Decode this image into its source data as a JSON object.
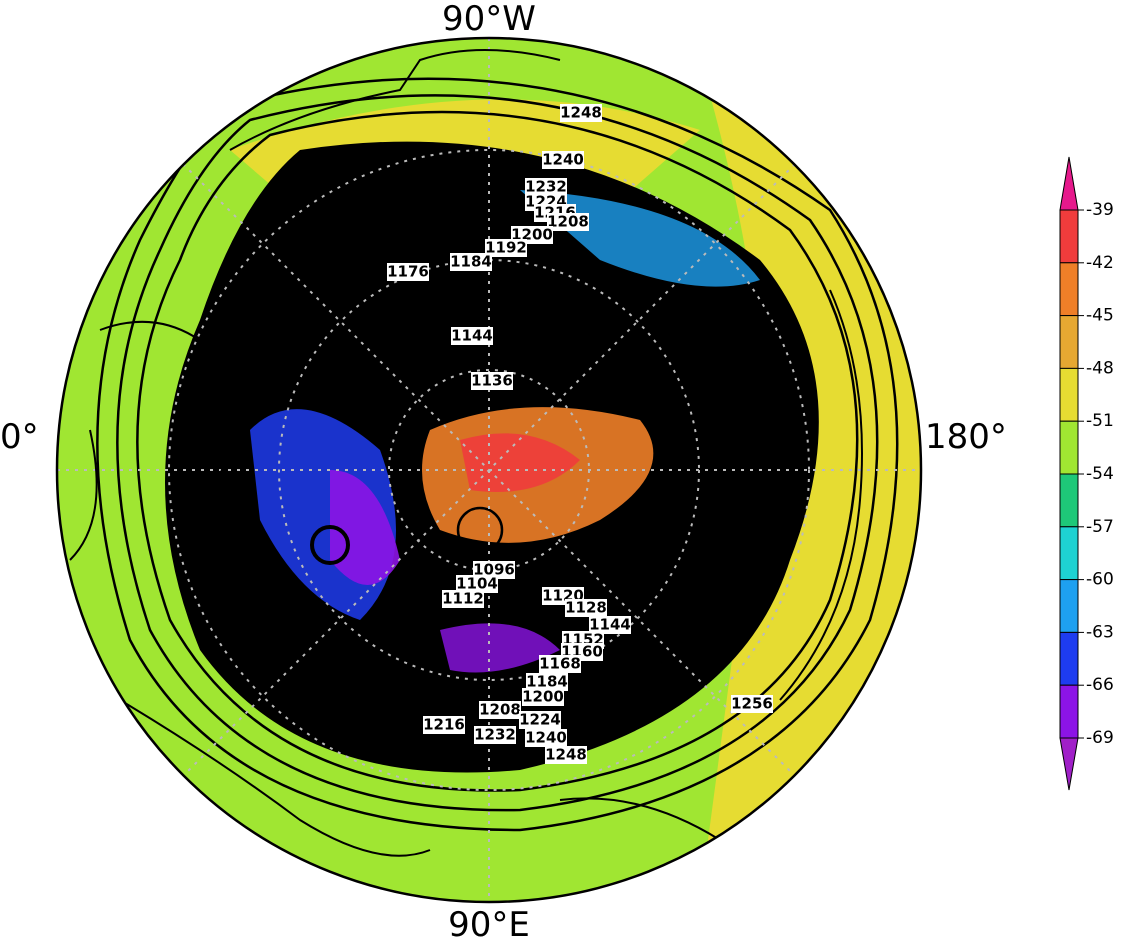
{
  "longitude_labels": [
    "90°W",
    "0°",
    "180°",
    "90°E"
  ],
  "colorbar": {
    "labels": [
      -39,
      -42,
      -45,
      -48,
      -51,
      -54,
      -57,
      -60,
      -63,
      -66,
      -69
    ]
  },
  "contour_labels": [
    1248,
    1240,
    1232,
    1224,
    1216,
    1208,
    1200,
    1192,
    1184,
    1176,
    1144,
    1136,
    1096,
    1104,
    1112,
    1120,
    1128,
    1144,
    1152,
    1160,
    1168,
    1184,
    1200,
    1208,
    1216,
    1224,
    1232,
    1240,
    1248,
    1256
  ]
}
